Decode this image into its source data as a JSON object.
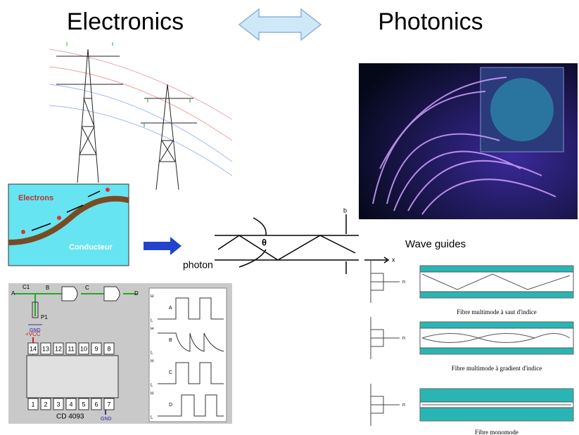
{
  "header": {
    "left_title": "Electronics",
    "right_title": "Photonics"
  },
  "conductor": {
    "electrons": "Electrons",
    "conductor": "Conducteur"
  },
  "ray_diagram": {
    "photon": "photon",
    "angle": "θ",
    "thickness": "b",
    "axis": "x"
  },
  "wave_guides": {
    "title": "Wave guides",
    "fibres": [
      "Fibre multimode à saut d'indice",
      "Fibre multimode à gradient d'indice",
      "Fibre monomode"
    ],
    "index_axis": "n"
  },
  "circuit": {
    "nodes": [
      "A",
      "B",
      "C",
      "D"
    ],
    "capacitor": "C1",
    "potentiometer": "P1",
    "ground": "GND",
    "supply": "+VCC",
    "top_pins": [
      "14",
      "13",
      "12",
      "11",
      "10",
      "9",
      "8"
    ],
    "bottom_pins": [
      "1",
      "2",
      "3",
      "4",
      "5",
      "6",
      "7"
    ],
    "chip": "CD 4093"
  },
  "waveforms": {
    "traces": [
      "A",
      "B",
      "C",
      "D"
    ],
    "high": "H",
    "low": "L"
  }
}
